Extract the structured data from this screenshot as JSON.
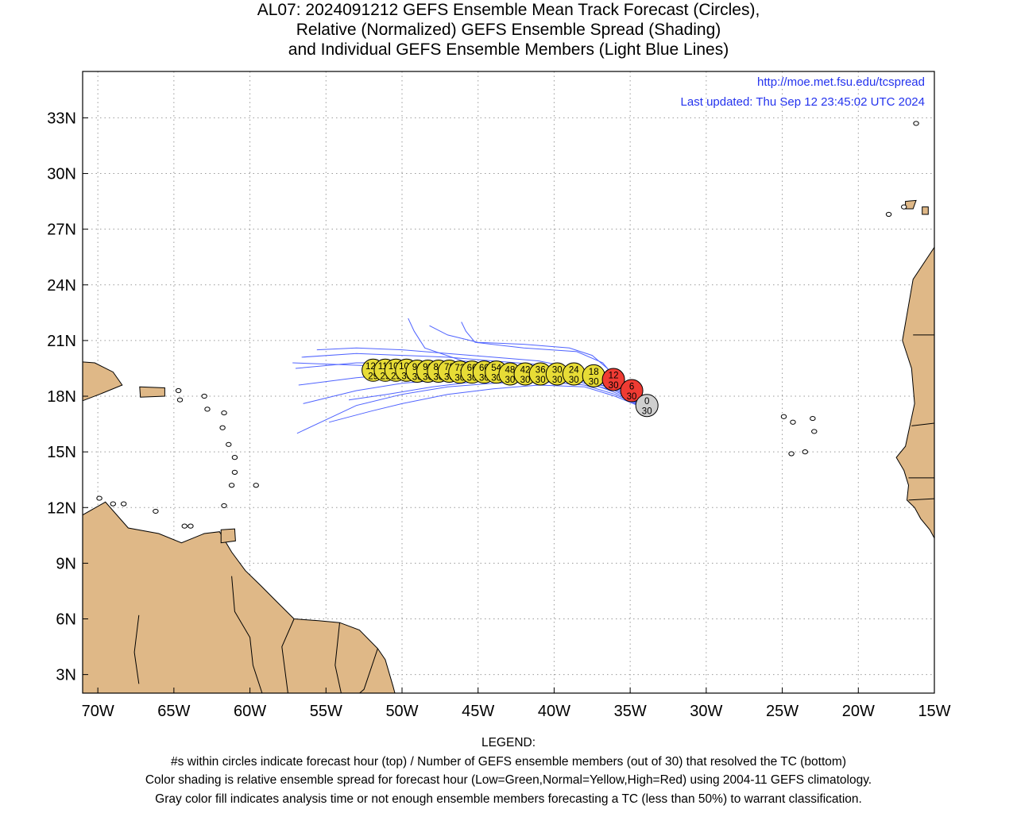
{
  "title": {
    "line1": "AL07: 2024091212 GEFS Ensemble Mean Track Forecast (Circles),",
    "line2": "Relative (Normalized) GEFS Ensemble Spread (Shading)",
    "line3": "and Individual GEFS Ensemble Members (Light Blue Lines)"
  },
  "credit": {
    "url": "http://moe.met.fsu.edu/tcspread",
    "updated": "Last updated: Thu Sep 12 23:45:02 UTC 2024"
  },
  "axes": {
    "lon_range": [
      -71,
      -15
    ],
    "lat_range": [
      2,
      35.5
    ],
    "lon_ticks": [
      {
        "value": -70,
        "label": "70W"
      },
      {
        "value": -65,
        "label": "65W"
      },
      {
        "value": -60,
        "label": "60W"
      },
      {
        "value": -55,
        "label": "55W"
      },
      {
        "value": -50,
        "label": "50W"
      },
      {
        "value": -45,
        "label": "45W"
      },
      {
        "value": -40,
        "label": "40W"
      },
      {
        "value": -35,
        "label": "35W"
      },
      {
        "value": -30,
        "label": "30W"
      },
      {
        "value": -25,
        "label": "25W"
      },
      {
        "value": -20,
        "label": "20W"
      },
      {
        "value": -15,
        "label": "15W"
      }
    ],
    "lat_ticks": [
      {
        "value": 3,
        "label": "3N"
      },
      {
        "value": 6,
        "label": "6N"
      },
      {
        "value": 9,
        "label": "9N"
      },
      {
        "value": 12,
        "label": "12N"
      },
      {
        "value": 15,
        "label": "15N"
      },
      {
        "value": 18,
        "label": "18N"
      },
      {
        "value": 21,
        "label": "21N"
      },
      {
        "value": 24,
        "label": "24N"
      },
      {
        "value": 27,
        "label": "27N"
      },
      {
        "value": 30,
        "label": "30N"
      },
      {
        "value": 33,
        "label": "33N"
      }
    ],
    "gridlines": true
  },
  "colors": {
    "land": "#dfb887",
    "coast": "#000000",
    "member_track": "#4f63ff",
    "credit_text": "#2433ee",
    "spread_low": "#2fbf3f",
    "spread_normal": "#e7dc36",
    "spread_high": "#ef3b33",
    "analysis": "#cfcfcf"
  },
  "mean_track": [
    {
      "hour": "0",
      "members": "30",
      "lat": 17.5,
      "lon": -33.9,
      "spread": "analysis"
    },
    {
      "hour": "6",
      "members": "30",
      "lat": 18.3,
      "lon": -34.9,
      "spread": "high"
    },
    {
      "hour": "12",
      "members": "30",
      "lat": 18.9,
      "lon": -36.1,
      "spread": "high"
    },
    {
      "hour": "18",
      "members": "30",
      "lat": 19.1,
      "lon": -37.4,
      "spread": "normal"
    },
    {
      "hour": "24",
      "members": "30",
      "lat": 19.2,
      "lon": -38.7,
      "spread": "normal"
    },
    {
      "hour": "30",
      "members": "30",
      "lat": 19.2,
      "lon": -39.8,
      "spread": "normal"
    },
    {
      "hour": "36",
      "members": "30",
      "lat": 19.2,
      "lon": -40.9,
      "spread": "normal"
    },
    {
      "hour": "42",
      "members": "30",
      "lat": 19.2,
      "lon": -41.9,
      "spread": "normal"
    },
    {
      "hour": "48",
      "members": "30",
      "lat": 19.2,
      "lon": -42.9,
      "spread": "normal"
    },
    {
      "hour": "54",
      "members": "30",
      "lat": 19.3,
      "lon": -43.8,
      "spread": "normal"
    },
    {
      "hour": "60",
      "members": "30",
      "lat": 19.3,
      "lon": -44.6,
      "spread": "normal"
    },
    {
      "hour": "66",
      "members": "30",
      "lat": 19.3,
      "lon": -45.4,
      "spread": "normal"
    },
    {
      "hour": "72",
      "members": "30",
      "lat": 19.3,
      "lon": -46.2,
      "spread": "normal"
    },
    {
      "hour": "78",
      "members": "30",
      "lat": 19.35,
      "lon": -46.9,
      "spread": "normal"
    },
    {
      "hour": "84",
      "members": "30",
      "lat": 19.35,
      "lon": -47.6,
      "spread": "normal"
    },
    {
      "hour": "90",
      "members": "30",
      "lat": 19.35,
      "lon": -48.3,
      "spread": "normal"
    },
    {
      "hour": "96",
      "members": "30",
      "lat": 19.35,
      "lon": -49.0,
      "spread": "normal"
    },
    {
      "hour": "102",
      "members": "30",
      "lat": 19.4,
      "lon": -49.7,
      "spread": "normal"
    },
    {
      "hour": "108",
      "members": "29",
      "lat": 19.4,
      "lon": -50.4,
      "spread": "normal"
    },
    {
      "hour": "114",
      "members": "29",
      "lat": 19.4,
      "lon": -51.1,
      "spread": "normal"
    },
    {
      "hour": "120",
      "members": "29",
      "lat": 19.4,
      "lon": -51.9,
      "spread": "normal"
    }
  ],
  "member_tracks": [
    [
      [
        -33.6,
        17.2
      ],
      [
        -36,
        18.6
      ],
      [
        -38,
        19.4
      ],
      [
        -41,
        19.9
      ],
      [
        -44,
        20.1
      ],
      [
        -47,
        20.3
      ],
      [
        -50,
        20.5
      ],
      [
        -53,
        20.6
      ],
      [
        -55.6,
        20.5
      ]
    ],
    [
      [
        -33.6,
        17.2
      ],
      [
        -36,
        18.5
      ],
      [
        -38,
        19.3
      ],
      [
        -41,
        19.7
      ],
      [
        -44,
        19.9
      ],
      [
        -47,
        20.1
      ],
      [
        -50,
        20.2
      ],
      [
        -53,
        20.3
      ],
      [
        -56.6,
        20.1
      ]
    ],
    [
      [
        -33.6,
        17.2
      ],
      [
        -36,
        18.4
      ],
      [
        -38,
        19.1
      ],
      [
        -41,
        19.4
      ],
      [
        -44,
        19.6
      ],
      [
        -47,
        19.7
      ],
      [
        -50,
        19.8
      ],
      [
        -53,
        19.8
      ],
      [
        -57.0,
        19.5
      ]
    ],
    [
      [
        -33.6,
        17.2
      ],
      [
        -36,
        18.3
      ],
      [
        -38,
        19.0
      ],
      [
        -41,
        19.2
      ],
      [
        -44,
        19.3
      ],
      [
        -47,
        19.3
      ],
      [
        -50,
        19.2
      ],
      [
        -53,
        19.0
      ],
      [
        -56.8,
        18.6
      ]
    ],
    [
      [
        -33.6,
        17.2
      ],
      [
        -36,
        18.2
      ],
      [
        -38,
        18.8
      ],
      [
        -41,
        19.0
      ],
      [
        -44,
        19.0
      ],
      [
        -47,
        18.9
      ],
      [
        -50,
        18.7
      ],
      [
        -53,
        18.3
      ],
      [
        -56.5,
        17.6
      ]
    ],
    [
      [
        -33.6,
        17.2
      ],
      [
        -36,
        18.1
      ],
      [
        -38,
        18.6
      ],
      [
        -41,
        18.8
      ],
      [
        -44,
        18.7
      ],
      [
        -47,
        18.5
      ],
      [
        -50,
        18.1
      ],
      [
        -53,
        17.5
      ],
      [
        -56.9,
        16.0
      ]
    ],
    [
      [
        -33.6,
        17.2
      ],
      [
        -36,
        18.0
      ],
      [
        -38,
        18.5
      ],
      [
        -41,
        18.6
      ],
      [
        -44,
        18.4
      ],
      [
        -47,
        18.1
      ],
      [
        -50,
        17.6
      ],
      [
        -52,
        17.2
      ],
      [
        -54.8,
        16.6
      ]
    ],
    [
      [
        -33.6,
        17.2
      ],
      [
        -35.5,
        18.4
      ],
      [
        -36.5,
        19.5
      ],
      [
        -37.5,
        20.2
      ],
      [
        -39,
        20.6
      ],
      [
        -42,
        20.8
      ],
      [
        -45,
        20.9
      ],
      [
        -47,
        21.3
      ],
      [
        -48.2,
        21.8
      ]
    ],
    [
      [
        -33.6,
        17.2
      ],
      [
        -35.5,
        18.5
      ],
      [
        -36.8,
        19.8
      ],
      [
        -38.5,
        20.4
      ],
      [
        -42,
        20.6
      ],
      [
        -45.2,
        20.9
      ],
      [
        -45.8,
        21.5
      ],
      [
        -46.1,
        22.0
      ]
    ],
    [
      [
        -33.6,
        17.2
      ],
      [
        -36,
        18.6
      ],
      [
        -38.5,
        19.3
      ],
      [
        -42,
        19.6
      ],
      [
        -46,
        19.9
      ],
      [
        -48.5,
        20.6
      ],
      [
        -49.2,
        21.5
      ],
      [
        -49.6,
        22.2
      ]
    ],
    [
      [
        -33.6,
        17.2
      ],
      [
        -36,
        18.3
      ],
      [
        -39,
        18.9
      ],
      [
        -42,
        19.0
      ],
      [
        -45,
        18.8
      ],
      [
        -48,
        18.5
      ],
      [
        -51,
        18.1
      ],
      [
        -53.5,
        17.8
      ]
    ],
    [
      [
        -33.6,
        17.2
      ],
      [
        -36,
        18.4
      ],
      [
        -39,
        19.0
      ],
      [
        -42,
        19.3
      ],
      [
        -45,
        19.4
      ],
      [
        -48,
        19.5
      ],
      [
        -51,
        19.6
      ],
      [
        -54,
        19.7
      ],
      [
        -57.2,
        19.8
      ]
    ]
  ]
}
